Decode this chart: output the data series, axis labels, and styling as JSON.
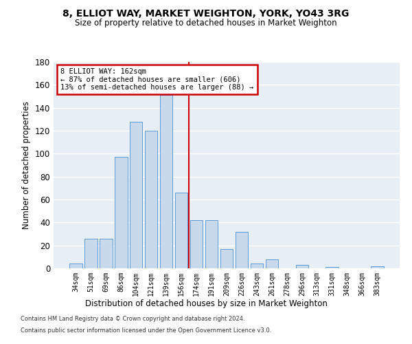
{
  "title1": "8, ELLIOT WAY, MARKET WEIGHTON, YORK, YO43 3RG",
  "title2": "Size of property relative to detached houses in Market Weighton",
  "xlabel": "Distribution of detached houses by size in Market Weighton",
  "ylabel": "Number of detached properties",
  "categories": [
    "34sqm",
    "51sqm",
    "69sqm",
    "86sqm",
    "104sqm",
    "121sqm",
    "139sqm",
    "156sqm",
    "174sqm",
    "191sqm",
    "209sqm",
    "226sqm",
    "243sqm",
    "261sqm",
    "278sqm",
    "296sqm",
    "313sqm",
    "331sqm",
    "348sqm",
    "366sqm",
    "383sqm"
  ],
  "values": [
    4,
    26,
    26,
    97,
    128,
    120,
    151,
    66,
    42,
    42,
    17,
    32,
    4,
    8,
    0,
    3,
    0,
    1,
    0,
    0,
    2
  ],
  "bar_color": "#c9d9ec",
  "bar_edge_color": "#5b9bd5",
  "property_line_x": 7.5,
  "annotation_text": "8 ELLIOT WAY: 162sqm\n← 87% of detached houses are smaller (606)\n13% of semi-detached houses are larger (88) →",
  "annotation_box_color": "#ffffff",
  "annotation_box_edge_color": "#cc0000",
  "vline_color": "#cc0000",
  "ylim": [
    0,
    180
  ],
  "yticks": [
    0,
    20,
    40,
    60,
    80,
    100,
    120,
    140,
    160,
    180
  ],
  "background_color": "#e8eef5",
  "grid_color": "#ffffff",
  "footer1": "Contains HM Land Registry data © Crown copyright and database right 2024.",
  "footer2": "Contains public sector information licensed under the Open Government Licence v3.0."
}
